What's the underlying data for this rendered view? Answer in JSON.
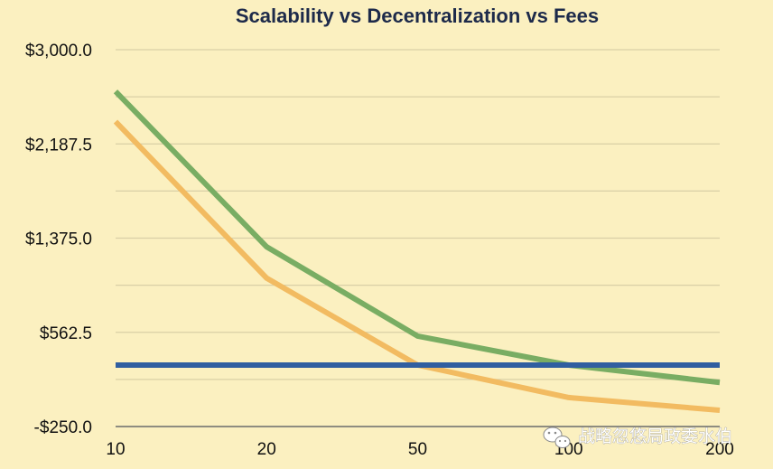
{
  "chart_data": {
    "type": "line",
    "title": "Scalability vs Decentralization vs Fees",
    "xlabel": "",
    "ylabel": "",
    "categories": [
      "10",
      "20",
      "50",
      "100",
      "200"
    ],
    "y_ticks": [
      "$3,000.0",
      "$2,187.5",
      "$1,375.0",
      "$562.5",
      "-$250.0"
    ],
    "ylim": [
      -250,
      3000
    ],
    "grid": true,
    "series": [
      {
        "name": "green",
        "color": "#79ad63",
        "values": [
          2640,
          1300,
          530,
          280,
          130
        ]
      },
      {
        "name": "orange",
        "color": "#f2bb61",
        "values": [
          2380,
          1030,
          280,
          0,
          -110
        ]
      },
      {
        "name": "blue",
        "color": "#305ea0",
        "values": [
          280,
          280,
          280,
          280,
          280
        ]
      }
    ]
  },
  "watermark": {
    "text": "战略忽悠局政委水伯",
    "icon": "wechat-icon"
  }
}
